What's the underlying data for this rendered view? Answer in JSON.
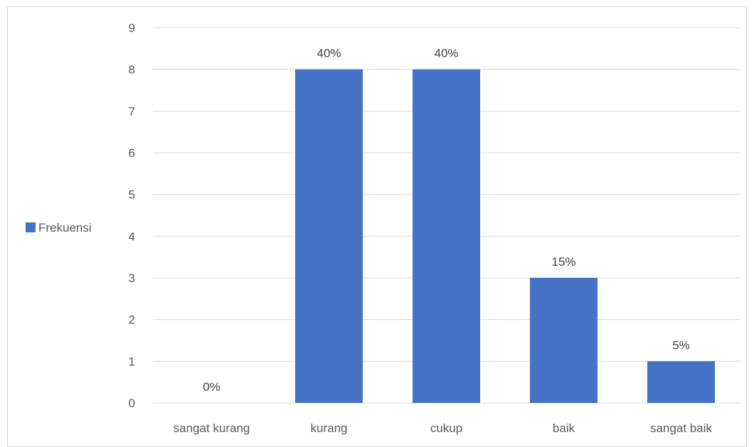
{
  "chart_data": {
    "type": "bar",
    "categories": [
      "sangat kurang",
      "kurang",
      "cukup",
      "baik",
      "sangat baik"
    ],
    "series": [
      {
        "name": "Frekuensi",
        "values": [
          0,
          8,
          8,
          3,
          1
        ],
        "data_labels": [
          "0%",
          "40%",
          "40%",
          "15%",
          "5%"
        ],
        "color": "#4472C4"
      }
    ],
    "ylim": [
      0,
      9
    ],
    "yticks": [
      "0",
      "1",
      "2",
      "3",
      "4",
      "5",
      "6",
      "7",
      "8",
      "9"
    ],
    "grid": true,
    "legend_position": "left"
  }
}
